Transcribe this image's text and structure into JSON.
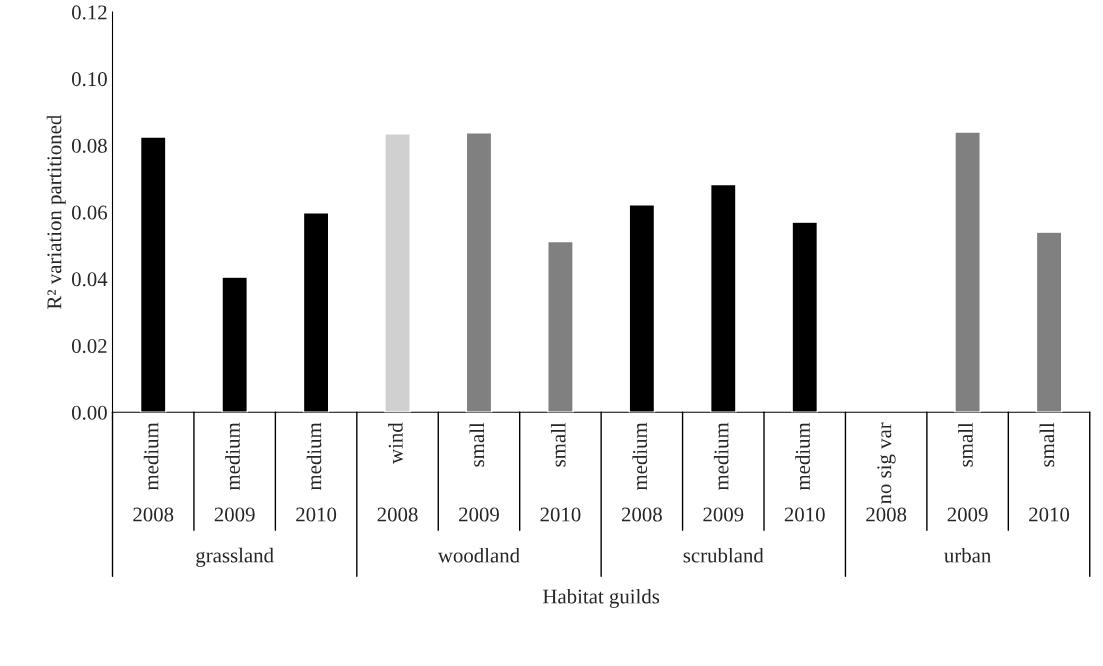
{
  "chart_data": {
    "type": "bar",
    "ylabel": "R² variation partitioned",
    "xlabel": "Habitat guilds",
    "categories": [
      "medium",
      "medium",
      "medium",
      "wind",
      "small",
      "small",
      "medium",
      "medium",
      "medium",
      "no sig var",
      "small",
      "small"
    ],
    "values": [
      0.0825,
      0.0405,
      0.0598,
      0.0835,
      0.0838,
      0.0512,
      0.0622,
      0.0683,
      0.057,
      null,
      0.084,
      0.054
    ],
    "colors": [
      "#000000",
      "#000000",
      "#000000",
      "#d0d0d0",
      "#808080",
      "#808080",
      "#000000",
      "#000000",
      "#000000",
      "#808080",
      "#808080",
      "#808080"
    ],
    "ylim": [
      0,
      0.12
    ],
    "yticks": [
      {
        "value": 0,
        "label": "0.00"
      },
      {
        "value": 0.02,
        "label": "0.02"
      },
      {
        "value": 0.04,
        "label": "0.04"
      },
      {
        "value": 0.06,
        "label": "0.06"
      },
      {
        "value": 0.08,
        "label": "0.08"
      },
      {
        "value": 0.1,
        "label": "0.10"
      },
      {
        "value": 0.12,
        "label": "0.12"
      }
    ],
    "annotations": [
      "2008",
      "2009",
      "2010",
      "2008",
      "2009",
      "2010",
      "2008",
      "2009",
      "2010",
      "2008",
      "2009",
      "2010",
      "grassland",
      "woodland",
      "scrubland",
      "urban"
    ],
    "grid": false,
    "legend": false
  }
}
